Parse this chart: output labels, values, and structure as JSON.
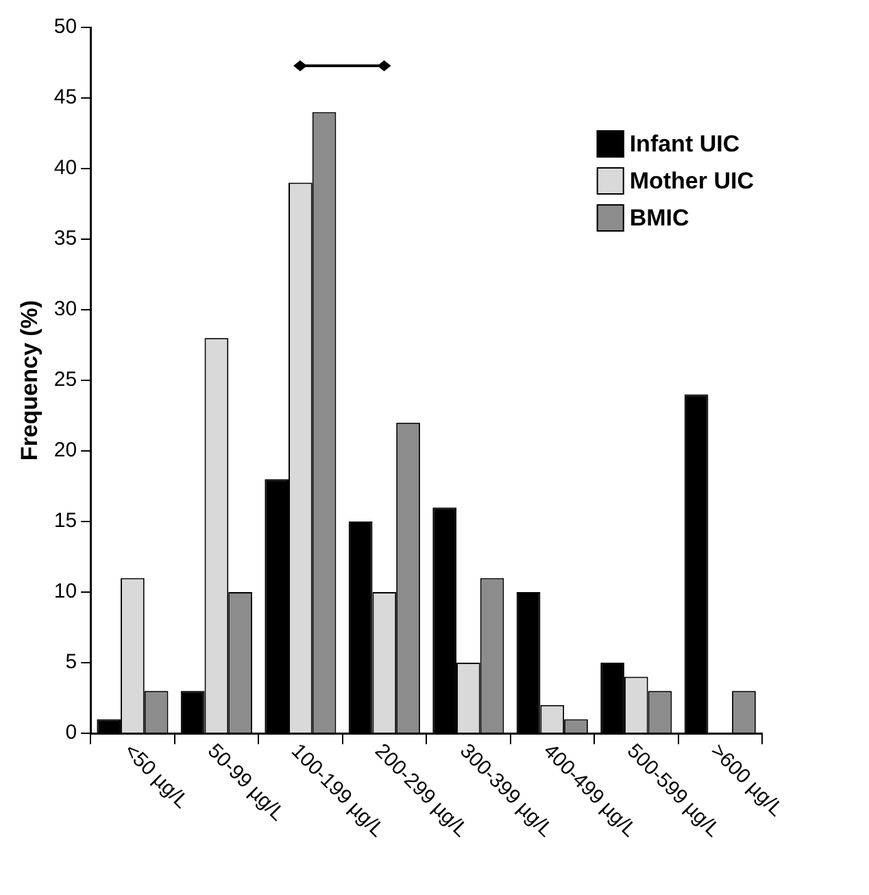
{
  "chart_data": {
    "type": "bar",
    "ylabel": "Frequency (%)",
    "categories": [
      "<50 µg/L",
      "50-99 µg/L",
      "100-199 µg/L",
      "200-299 µg/L",
      "300-399 µg/L",
      "400-499 µg/L",
      "500-599 µg/L",
      ">600 µg/L"
    ],
    "series": [
      {
        "name": "Infant UIC",
        "color": "#000000",
        "values": [
          1,
          3,
          18,
          15,
          16,
          10,
          5,
          24
        ]
      },
      {
        "name": "Mother UIC",
        "color": "#d9d9d9",
        "values": [
          11,
          28,
          39,
          10,
          5,
          2,
          4,
          null
        ]
      },
      {
        "name": "BMIC",
        "color": "#8c8c8c",
        "values": [
          3,
          10,
          44,
          22,
          11,
          1,
          3,
          3
        ]
      }
    ],
    "ylim": [
      0,
      50
    ],
    "yticks": [
      0,
      5,
      10,
      15,
      20,
      25,
      30,
      35,
      40,
      45,
      50
    ],
    "grid": false,
    "legend": "top right"
  }
}
